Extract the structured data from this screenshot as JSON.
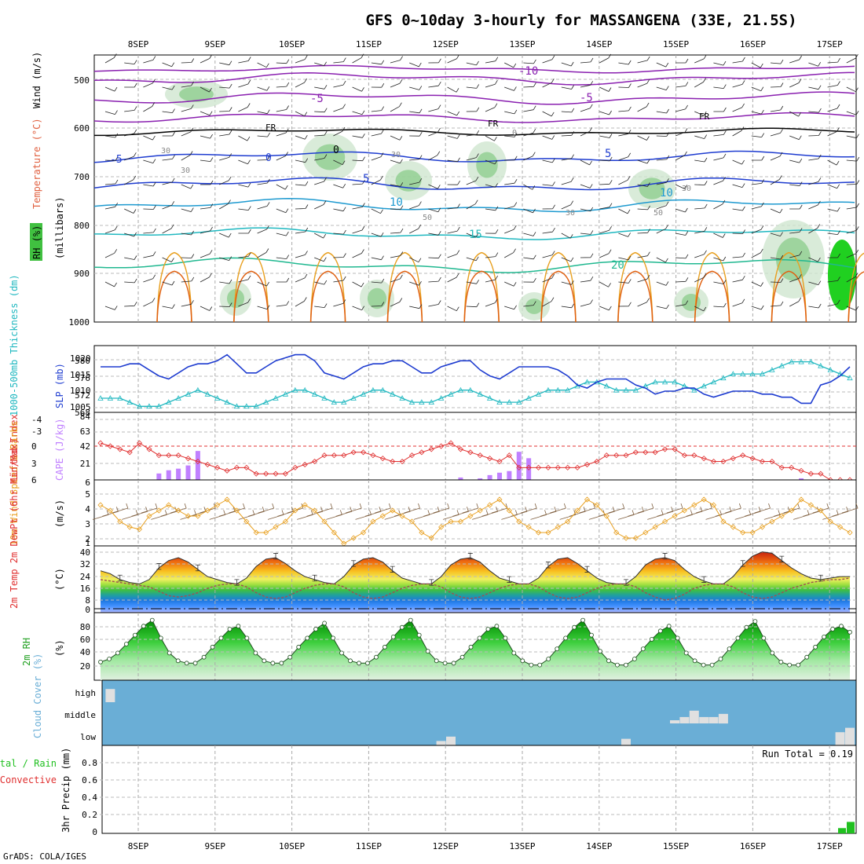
{
  "title": "GFS 0~10day 3-hourly for MASSANGENA (33E, 21.5S)",
  "credit": "GrADS: COLA/IGES",
  "dates": [
    "8SEP",
    "9SEP",
    "10SEP",
    "11SEP",
    "12SEP",
    "13SEP",
    "14SEP",
    "15SEP",
    "16SEP",
    "17SEP"
  ],
  "colors": {
    "frame": "#000000",
    "grid": "#aaaaaa",
    "slp": "#1e3cd0",
    "thickness": "#20b8c0",
    "cape": "#c080ff",
    "lifted": "#e03030",
    "wind": "#e8a020",
    "barb": "#806040",
    "rh": "#20a020",
    "cloud": "#6aaed6",
    "cloudcell": "#e0e0e0",
    "precip": "#20c020"
  },
  "panels": {
    "upper": {
      "labels": {
        "rh": "RH (%)",
        "temp": "Temperature (°C)",
        "wind": "Wind (m/s)",
        "units": "(millibars)"
      },
      "yticks": [
        "500",
        "600",
        "700",
        "800",
        "900",
        "1000"
      ],
      "contour_labels": [
        "-10",
        "-5",
        "-5",
        "FR",
        "FR",
        "FR",
        "0",
        "5",
        "5",
        "-5",
        "0",
        "5",
        "10",
        "10",
        "15",
        "20",
        "30",
        "30",
        "30",
        "30",
        "30",
        "50",
        "50",
        "0"
      ]
    },
    "slp": {
      "label_left": "1000-500mb Thickness (dm)",
      "label_right": "SLP (mb)",
      "left_ticks": [
        "580",
        "576",
        "572",
        "568"
      ],
      "right_ticks": [
        "1020",
        "1015",
        "1010",
        "1005"
      ]
    },
    "cape": {
      "label_left": "Lifted Index",
      "label_right": "CAPE (J/kg)",
      "left_ticks": [
        "-4",
        "-3",
        "0",
        "3",
        "6"
      ],
      "right_ticks": [
        "84",
        "63",
        "42",
        "21"
      ]
    },
    "wind10": {
      "label": "10m Wind Speed & Barbs",
      "units": "(m/s)",
      "ticks": [
        "6",
        "5",
        "4",
        "3",
        "2",
        "1"
      ]
    },
    "temp2m": {
      "label": "2m Temp 2m DewPt (6hr Min/Max)",
      "units": "(°C)",
      "ticks": [
        "40",
        "32",
        "24",
        "16",
        "8",
        "0"
      ]
    },
    "rh2m": {
      "label": "2m RH",
      "units": "(%)",
      "ticks": [
        "80",
        "60",
        "40",
        "20"
      ]
    },
    "cloud": {
      "label": "Cloud Cover (%)",
      "levels": [
        "high",
        "middle",
        "low"
      ]
    },
    "precip": {
      "label_a": "Total / Rain",
      "label_b": "Convective",
      "label_c": "3hr Precip (mm)",
      "run_total": "Run Total = 0.19",
      "ticks": [
        "0.8",
        "0.6",
        "0.4",
        "0.2",
        "0"
      ]
    }
  },
  "chart_data": [
    {
      "type": "line",
      "title": "1000-500mb Thickness & SLP",
      "x_unit": "3-hour steps from 8SEP 00Z minus 1",
      "series": [
        {
          "name": "SLP (mb)",
          "axis": "right",
          "ylim": [
            1003,
            1025
          ],
          "values": [
            1018,
            1018,
            1018,
            1019,
            1019,
            1017,
            1015,
            1014,
            1016,
            1018,
            1019,
            1019,
            1020,
            1022,
            1019,
            1016,
            1016,
            1018,
            1020,
            1021,
            1022,
            1022,
            1020,
            1016,
            1015,
            1014,
            1016,
            1018,
            1019,
            1019,
            1020,
            1020,
            1018,
            1016,
            1016,
            1018,
            1019,
            1020,
            1020,
            1017,
            1015,
            1014,
            1016,
            1018,
            1018,
            1018,
            1018,
            1017,
            1015,
            1012,
            1011,
            1013,
            1014,
            1014,
            1014,
            1012,
            1011,
            1009,
            1010,
            1010,
            1011,
            1011,
            1009,
            1008,
            1009,
            1010,
            1010,
            1010,
            1009,
            1009,
            1008,
            1008,
            1006,
            1006,
            1012,
            1013,
            1015,
            1018
          ]
        },
        {
          "name": "1000-500mb Thickness (dm)",
          "axis": "left",
          "ylim": [
            567.5,
            584
          ],
          "values": [
            571,
            571,
            571,
            570,
            569,
            569,
            569,
            570,
            571,
            572,
            573,
            572,
            571,
            570,
            569,
            569,
            569,
            570,
            571,
            572,
            573,
            573,
            572,
            571,
            570,
            570,
            571,
            572,
            573,
            573,
            572,
            571,
            570,
            570,
            570,
            571,
            572,
            573,
            573,
            572,
            571,
            570,
            570,
            570,
            571,
            572,
            573,
            573,
            573,
            574,
            575,
            575,
            574,
            573,
            573,
            573,
            574,
            575,
            575,
            575,
            574,
            573,
            574,
            575,
            576,
            577,
            577,
            577,
            577,
            578,
            579,
            580,
            580,
            580,
            579,
            578,
            577,
            576
          ]
        }
      ]
    },
    {
      "type": "bar",
      "title": "CAPE & Lifted Index",
      "series": [
        {
          "name": "CAPE (J/kg)",
          "values": [
            0,
            0,
            0,
            0,
            0,
            0,
            8,
            12,
            14,
            18,
            36,
            0,
            0,
            0,
            0,
            0,
            0,
            0,
            0,
            0,
            0,
            0,
            0,
            0,
            0,
            0,
            0,
            0,
            0,
            0,
            0,
            0,
            0,
            0,
            0,
            0,
            0,
            3,
            0,
            2,
            6,
            9,
            11,
            35,
            27,
            0,
            0,
            0,
            0,
            0,
            0,
            0,
            0,
            0,
            0,
            0,
            0,
            0,
            0,
            0,
            0,
            0,
            0,
            0,
            0,
            0,
            0,
            0,
            0,
            0,
            0,
            0,
            2,
            0,
            0,
            0,
            0,
            0
          ]
        },
        {
          "name": "Lifted Index",
          "ylim": [
            -5,
            6
          ],
          "values": [
            0,
            0.5,
            1,
            1.5,
            0,
            1,
            2,
            2,
            2,
            2.5,
            3,
            3.5,
            4,
            4.5,
            4,
            4,
            5,
            5,
            5,
            5,
            4,
            3.5,
            3,
            2,
            2,
            2,
            1.5,
            1.5,
            2,
            2.5,
            3,
            3,
            2,
            1.5,
            1,
            0.5,
            0,
            1,
            1.5,
            2,
            2.5,
            3,
            2,
            4,
            4,
            4,
            4,
            4,
            4,
            4,
            3.5,
            3,
            2,
            2,
            2,
            1.5,
            1.5,
            1.5,
            1,
            1,
            2,
            2,
            2.5,
            3,
            3,
            2.5,
            2,
            2.5,
            3,
            3,
            4,
            4,
            4.5,
            5,
            5,
            6,
            6,
            6
          ]
        }
      ]
    },
    {
      "type": "line",
      "title": "10m Wind Speed (m/s)",
      "ylim": [
        1,
        6
      ],
      "values": [
        4.5,
        4,
        3,
        2.5,
        2.3,
        3.5,
        4,
        4.5,
        4,
        3.5,
        3.5,
        4,
        4.5,
        5,
        4,
        3,
        2,
        2,
        2.5,
        3,
        4,
        4.5,
        4,
        3,
        2,
        1,
        1.5,
        2,
        3,
        3.5,
        4,
        3.5,
        3,
        2,
        1.5,
        2.5,
        3,
        3,
        3.5,
        4,
        4.5,
        5,
        4,
        3,
        2.5,
        2,
        2,
        2.5,
        3,
        4,
        5,
        4.5,
        3.5,
        2,
        1.5,
        1.5,
        2,
        2.5,
        3,
        3.5,
        4,
        4.5,
        5,
        4.5,
        3,
        2.5,
        2,
        2,
        2.5,
        3,
        3.5,
        4,
        5,
        4.5,
        4,
        3,
        2.5,
        2
      ]
    },
    {
      "type": "area",
      "title": "2m Temp and DewPt (°C)",
      "ylim": [
        0,
        42
      ],
      "series": [
        {
          "name": "2m Temp",
          "values": [
            26,
            24,
            20,
            18,
            17,
            20,
            28,
            33,
            35,
            32,
            27,
            22,
            20,
            18,
            17,
            21,
            29,
            34,
            35,
            31,
            26,
            22,
            20,
            18,
            17,
            22,
            30,
            34,
            35,
            32,
            26,
            21,
            19,
            17,
            17,
            22,
            30,
            34,
            35,
            32,
            26,
            21,
            19,
            17,
            17,
            21,
            29,
            34,
            35,
            31,
            26,
            21,
            18,
            17,
            17,
            22,
            30,
            34,
            35,
            33,
            27,
            22,
            19,
            17,
            17,
            22,
            30,
            36,
            39,
            38,
            33,
            28,
            24,
            21,
            20,
            21,
            22,
            22
          ]
        },
        {
          "name": "2m DewPt",
          "values": [
            20,
            19,
            18,
            17,
            16,
            15,
            12,
            9,
            8,
            9,
            11,
            14,
            16,
            17,
            17,
            15,
            11,
            8,
            7,
            8,
            11,
            14,
            16,
            17,
            17,
            15,
            11,
            8,
            7,
            8,
            11,
            14,
            16,
            17,
            17,
            15,
            11,
            8,
            7,
            8,
            11,
            14,
            16,
            17,
            17,
            15,
            11,
            8,
            7,
            8,
            11,
            14,
            16,
            17,
            17,
            15,
            11,
            8,
            6,
            7,
            10,
            14,
            16,
            17,
            17,
            15,
            11,
            8,
            7,
            8,
            11,
            14,
            16,
            18,
            19,
            20,
            20,
            21
          ]
        }
      ]
    },
    {
      "type": "area",
      "title": "2m RH (%)",
      "ylim": [
        0,
        100
      ],
      "values": [
        20,
        25,
        35,
        50,
        65,
        80,
        90,
        60,
        35,
        22,
        18,
        18,
        28,
        45,
        60,
        75,
        80,
        60,
        35,
        22,
        18,
        18,
        28,
        45,
        60,
        75,
        85,
        60,
        35,
        22,
        18,
        18,
        28,
        45,
        62,
        78,
        90,
        65,
        38,
        22,
        18,
        18,
        28,
        45,
        60,
        75,
        80,
        60,
        35,
        22,
        15,
        15,
        25,
        42,
        60,
        78,
        90,
        65,
        38,
        22,
        15,
        15,
        25,
        42,
        58,
        72,
        80,
        60,
        35,
        22,
        15,
        15,
        25,
        42,
        60,
        78,
        88,
        60,
        35,
        20,
        15,
        15,
        28,
        45,
        62,
        75,
        80,
        70
      ]
    },
    {
      "type": "heatmap",
      "title": "Cloud Cover (%)",
      "levels": [
        "high",
        "middle",
        "low"
      ],
      "cells": [
        {
          "level": "high",
          "step": 1,
          "value": 60
        },
        {
          "level": "low",
          "step": 35,
          "value": 20
        },
        {
          "level": "low",
          "step": 36,
          "value": 40
        },
        {
          "level": "low",
          "step": 54,
          "value": 30
        },
        {
          "level": "middle",
          "step": 59,
          "value": 15
        },
        {
          "level": "middle",
          "step": 60,
          "value": 30
        },
        {
          "level": "middle",
          "step": 61,
          "value": 60
        },
        {
          "level": "middle",
          "step": 62,
          "value": 30
        },
        {
          "level": "middle",
          "step": 63,
          "value": 30
        },
        {
          "level": "middle",
          "step": 64,
          "value": 45
        },
        {
          "level": "low",
          "step": 76,
          "value": 60
        },
        {
          "level": "low",
          "step": 77,
          "value": 80
        }
      ]
    },
    {
      "type": "bar",
      "title": "3hr Precip (mm)",
      "ylim": [
        0,
        1
      ],
      "categories": [
        "17SEP 03Z",
        "17SEP 06Z"
      ],
      "values": [
        0.06,
        0.13
      ]
    }
  ]
}
